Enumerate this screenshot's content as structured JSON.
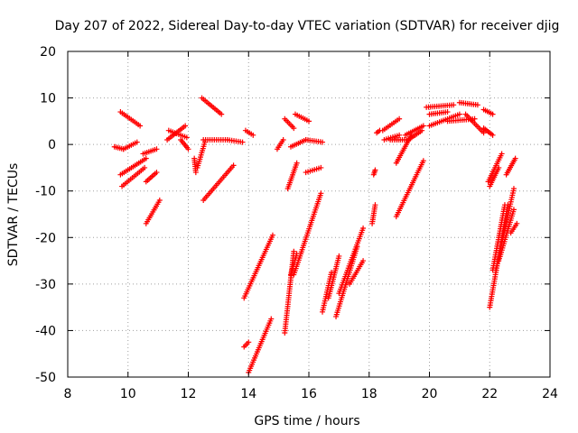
{
  "chart_data": {
    "type": "scatter",
    "title": "Day 207 of 2022, Sidereal Day-to-day VTEC variation (SDTVAR) for receiver djig",
    "xlabel": "GPS time / hours",
    "ylabel": "SDTVAR / TECUs",
    "xlim": [
      8,
      24
    ],
    "ylim": [
      -50,
      20
    ],
    "xticks": [
      8,
      10,
      12,
      14,
      16,
      18,
      20,
      22,
      24
    ],
    "yticks": [
      -50,
      -40,
      -30,
      -20,
      -10,
      0,
      10,
      20
    ],
    "grid": true,
    "marker": "+",
    "color": "#ff0000",
    "series": [
      {
        "name": "s01",
        "x": [
          9.55,
          9.85
        ],
        "y": [
          -0.5,
          -1.0
        ]
      },
      {
        "name": "s02",
        "x": [
          9.75,
          10.4
        ],
        "y": [
          7.0,
          4.0
        ]
      },
      {
        "name": "s03",
        "x": [
          9.75,
          10.6
        ],
        "y": [
          -6.5,
          -3.0
        ]
      },
      {
        "name": "s04",
        "x": [
          9.8,
          10.55
        ],
        "y": [
          -9.0,
          -5.0
        ]
      },
      {
        "name": "s05",
        "x": [
          9.85,
          10.3
        ],
        "y": [
          -1.0,
          0.5
        ]
      },
      {
        "name": "s06",
        "x": [
          10.5,
          10.95
        ],
        "y": [
          -2.0,
          -1.0
        ]
      },
      {
        "name": "s07",
        "x": [
          10.6,
          10.95
        ],
        "y": [
          -8.0,
          -6.0
        ]
      },
      {
        "name": "s08",
        "x": [
          10.6,
          11.05
        ],
        "y": [
          -17.0,
          -12.0
        ]
      },
      {
        "name": "s09",
        "x": [
          11.3,
          11.9
        ],
        "y": [
          1.0,
          4.0
        ]
      },
      {
        "name": "s10",
        "x": [
          11.35,
          11.95
        ],
        "y": [
          3.0,
          1.5
        ]
      },
      {
        "name": "s11",
        "x": [
          11.75,
          12.0
        ],
        "y": [
          1.0,
          -1.0
        ]
      },
      {
        "name": "s12",
        "x": [
          12.2,
          12.25
        ],
        "y": [
          -3.0,
          -6.0
        ]
      },
      {
        "name": "s13",
        "x": [
          12.3,
          12.55
        ],
        "y": [
          -5.0,
          0.5
        ]
      },
      {
        "name": "s14",
        "x": [
          12.45,
          13.1
        ],
        "y": [
          10.0,
          6.5
        ]
      },
      {
        "name": "s15",
        "x": [
          12.5,
          13.3
        ],
        "y": [
          1.0,
          1.0
        ]
      },
      {
        "name": "s16",
        "x": [
          12.5,
          13.5
        ],
        "y": [
          -12.0,
          -4.5
        ]
      },
      {
        "name": "s17",
        "x": [
          13.3,
          13.8
        ],
        "y": [
          1.0,
          0.5
        ]
      },
      {
        "name": "s18",
        "x": [
          13.9,
          14.15
        ],
        "y": [
          3.0,
          2.0
        ]
      },
      {
        "name": "s19",
        "x": [
          13.85,
          14.8
        ],
        "y": [
          -33.0,
          -19.5
        ]
      },
      {
        "name": "s20",
        "x": [
          13.85,
          14.0
        ],
        "y": [
          -43.5,
          -42.5
        ]
      },
      {
        "name": "s21",
        "x": [
          14.0,
          14.75
        ],
        "y": [
          -49.0,
          -37.5
        ]
      },
      {
        "name": "s22",
        "x": [
          14.95,
          15.15
        ],
        "y": [
          -1.0,
          1.0
        ]
      },
      {
        "name": "s23",
        "x": [
          15.2,
          15.5
        ],
        "y": [
          5.5,
          3.5
        ]
      },
      {
        "name": "s24",
        "x": [
          15.3,
          15.6
        ],
        "y": [
          -9.5,
          -4.0
        ]
      },
      {
        "name": "s25",
        "x": [
          15.4,
          15.9
        ],
        "y": [
          -0.5,
          1.0
        ]
      },
      {
        "name": "s26",
        "x": [
          15.55,
          16.0
        ],
        "y": [
          6.5,
          5.0
        ]
      },
      {
        "name": "s27",
        "x": [
          15.9,
          16.45
        ],
        "y": [
          1.0,
          0.5
        ]
      },
      {
        "name": "s28",
        "x": [
          15.9,
          16.4
        ],
        "y": [
          -6.0,
          -5.0
        ]
      },
      {
        "name": "s29",
        "x": [
          15.5,
          16.4
        ],
        "y": [
          -28.0,
          -10.5
        ]
      },
      {
        "name": "s30",
        "x": [
          15.2,
          15.5
        ],
        "y": [
          -40.5,
          -23.0
        ]
      },
      {
        "name": "s31",
        "x": [
          15.4,
          15.6
        ],
        "y": [
          -28.0,
          -23.5
        ]
      },
      {
        "name": "s32",
        "x": [
          16.45,
          16.75
        ],
        "y": [
          -36.0,
          -27.5
        ]
      },
      {
        "name": "s33",
        "x": [
          16.65,
          17.0
        ],
        "y": [
          -33.0,
          -24.0
        ]
      },
      {
        "name": "s34",
        "x": [
          16.9,
          17.6
        ],
        "y": [
          -37.0,
          -22.0
        ]
      },
      {
        "name": "s35",
        "x": [
          17.0,
          17.8
        ],
        "y": [
          -32.0,
          -18.0
        ]
      },
      {
        "name": "s36",
        "x": [
          17.35,
          17.8
        ],
        "y": [
          -30.0,
          -25.0
        ]
      },
      {
        "name": "s37",
        "x": [
          18.1,
          18.2
        ],
        "y": [
          -17.0,
          -13.0
        ]
      },
      {
        "name": "s38",
        "x": [
          18.15,
          18.2
        ],
        "y": [
          -6.5,
          -5.5
        ]
      },
      {
        "name": "s39",
        "x": [
          18.25,
          18.35
        ],
        "y": [
          2.5,
          3.0
        ]
      },
      {
        "name": "s40",
        "x": [
          18.45,
          19.0
        ],
        "y": [
          3.0,
          5.5
        ]
      },
      {
        "name": "s41",
        "x": [
          18.5,
          19.0
        ],
        "y": [
          1.0,
          2.0
        ]
      },
      {
        "name": "s42",
        "x": [
          18.7,
          19.3
        ],
        "y": [
          1.0,
          1.0
        ]
      },
      {
        "name": "s43",
        "x": [
          18.9,
          19.4
        ],
        "y": [
          -4.0,
          2.0
        ]
      },
      {
        "name": "s44",
        "x": [
          19.2,
          19.8
        ],
        "y": [
          2.0,
          4.0
        ]
      },
      {
        "name": "s45",
        "x": [
          19.3,
          19.75
        ],
        "y": [
          1.0,
          3.0
        ]
      },
      {
        "name": "s46",
        "x": [
          18.9,
          19.8
        ],
        "y": [
          -15.5,
          -3.5
        ]
      },
      {
        "name": "s47",
        "x": [
          19.9,
          20.8
        ],
        "y": [
          8.0,
          8.5
        ]
      },
      {
        "name": "s48",
        "x": [
          20.0,
          20.6
        ],
        "y": [
          6.5,
          7.0
        ]
      },
      {
        "name": "s49",
        "x": [
          20.0,
          21.0
        ],
        "y": [
          4.0,
          6.5
        ]
      },
      {
        "name": "s50",
        "x": [
          20.6,
          21.5
        ],
        "y": [
          5.0,
          5.5
        ]
      },
      {
        "name": "s51",
        "x": [
          21.0,
          21.6
        ],
        "y": [
          9.0,
          8.5
        ]
      },
      {
        "name": "s52",
        "x": [
          21.2,
          21.8
        ],
        "y": [
          6.5,
          2.5
        ]
      },
      {
        "name": "s53",
        "x": [
          21.8,
          22.1
        ],
        "y": [
          7.5,
          6.5
        ]
      },
      {
        "name": "s54",
        "x": [
          21.8,
          22.1
        ],
        "y": [
          3.5,
          2.0
        ]
      },
      {
        "name": "s55",
        "x": [
          21.95,
          22.4
        ],
        "y": [
          -8.0,
          -2.0
        ]
      },
      {
        "name": "s56",
        "x": [
          22.0,
          22.3
        ],
        "y": [
          -9.0,
          -5.0
        ]
      },
      {
        "name": "s57",
        "x": [
          22.0,
          22.6
        ],
        "y": [
          -35.0,
          -13.0
        ]
      },
      {
        "name": "s58",
        "x": [
          22.1,
          22.5
        ],
        "y": [
          -27.0,
          -13.0
        ]
      },
      {
        "name": "s59",
        "x": [
          22.2,
          22.8
        ],
        "y": [
          -27.0,
          -9.5
        ]
      },
      {
        "name": "s60",
        "x": [
          22.3,
          22.8
        ],
        "y": [
          -25.0,
          -14.0
        ]
      },
      {
        "name": "s61",
        "x": [
          22.55,
          22.85
        ],
        "y": [
          -6.5,
          -3.0
        ]
      },
      {
        "name": "s62",
        "x": [
          22.7,
          22.9
        ],
        "y": [
          -19.0,
          -17.0
        ]
      }
    ]
  }
}
